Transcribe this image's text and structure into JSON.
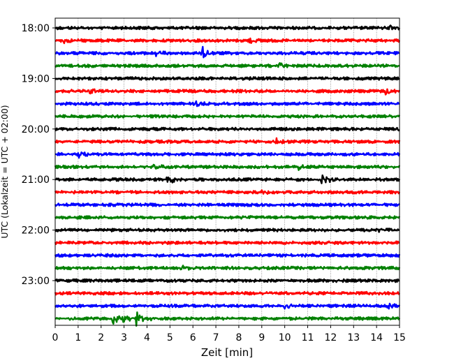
{
  "chart_data": {
    "type": "line",
    "xlabel": "Zeit  [min]",
    "ylabel": "UTC (Lokalzeit = UTC + 02:00)",
    "xlim": [
      0,
      15
    ],
    "x_ticks": [
      "0",
      "1",
      "2",
      "3",
      "4",
      "5",
      "6",
      "7",
      "8",
      "9",
      "10",
      "11",
      "12",
      "13",
      "14",
      "15"
    ],
    "y_tick_labels": [
      "18:00",
      "19:00",
      "20:00",
      "21:00",
      "22:00",
      "23:00"
    ],
    "trace_interval_min": 15,
    "grid": "vertical dotted lines at each minute",
    "colors": [
      "#000000",
      "#ff0000",
      "#0000ff",
      "#008000"
    ],
    "traces": [
      {
        "start": "18:00",
        "color": "#000000",
        "events": [
          {
            "t": 14.6,
            "amp": 0.45
          }
        ]
      },
      {
        "start": "18:15",
        "color": "#ff0000",
        "events": [
          {
            "t": 0.3,
            "amp": 0.35
          },
          {
            "t": 8.5,
            "amp": 0.3
          }
        ]
      },
      {
        "start": "18:30",
        "color": "#0000ff",
        "events": [
          {
            "t": 4.4,
            "amp": 0.35
          },
          {
            "t": 6.4,
            "amp": 0.9
          }
        ]
      },
      {
        "start": "18:45",
        "color": "#008000",
        "events": [
          {
            "t": 9.7,
            "amp": 0.45
          }
        ]
      },
      {
        "start": "19:00",
        "color": "#000000",
        "events": []
      },
      {
        "start": "19:15",
        "color": "#ff0000",
        "events": [
          {
            "t": 1.5,
            "amp": 0.3
          },
          {
            "t": 14.4,
            "amp": 0.5
          }
        ]
      },
      {
        "start": "19:30",
        "color": "#0000ff",
        "events": [
          {
            "t": 6.1,
            "amp": 0.3
          }
        ]
      },
      {
        "start": "19:45",
        "color": "#008000",
        "events": []
      },
      {
        "start": "20:00",
        "color": "#000000",
        "events": [
          {
            "t": 14.9,
            "amp": 0.35
          }
        ]
      },
      {
        "start": "20:15",
        "color": "#ff0000",
        "events": [
          {
            "t": 9.6,
            "amp": 0.4
          }
        ]
      },
      {
        "start": "20:30",
        "color": "#0000ff",
        "events": [
          {
            "t": 1.0,
            "amp": 0.4
          }
        ]
      },
      {
        "start": "20:45",
        "color": "#008000",
        "events": [
          {
            "t": 4.3,
            "amp": 0.45
          },
          {
            "t": 10.6,
            "amp": 0.3
          }
        ]
      },
      {
        "start": "21:00",
        "color": "#000000",
        "events": [
          {
            "t": 4.9,
            "amp": 0.9
          },
          {
            "t": 11.6,
            "amp": 1.3
          }
        ]
      },
      {
        "start": "21:15",
        "color": "#ff0000",
        "events": [
          {
            "t": 9.0,
            "amp": 0.35
          }
        ]
      },
      {
        "start": "21:30",
        "color": "#0000ff",
        "events": []
      },
      {
        "start": "21:45",
        "color": "#008000",
        "events": [
          {
            "t": 8.1,
            "amp": 0.25
          }
        ]
      },
      {
        "start": "22:00",
        "color": "#000000",
        "events": [
          {
            "t": 14.0,
            "amp": 0.45
          }
        ]
      },
      {
        "start": "22:15",
        "color": "#ff0000",
        "events": []
      },
      {
        "start": "22:30",
        "color": "#0000ff",
        "events": []
      },
      {
        "start": "22:45",
        "color": "#008000",
        "events": [
          {
            "t": 5.5,
            "amp": 0.3
          }
        ]
      },
      {
        "start": "23:00",
        "color": "#000000",
        "events": []
      },
      {
        "start": "23:15",
        "color": "#ff0000",
        "events": []
      },
      {
        "start": "23:30",
        "color": "#0000ff",
        "events": [
          {
            "t": 10.0,
            "amp": 0.45
          },
          {
            "t": 14.5,
            "amp": 0.3
          }
        ]
      },
      {
        "start": "23:45",
        "color": "#008000",
        "events": [
          {
            "t": 0.6,
            "amp": 0.5
          },
          {
            "t": 2.5,
            "amp": 0.8
          },
          {
            "t": 3.0,
            "amp": 0.6
          },
          {
            "t": 3.5,
            "amp": 1.2
          },
          {
            "t": 4.2,
            "amp": 0.4
          }
        ]
      }
    ]
  }
}
